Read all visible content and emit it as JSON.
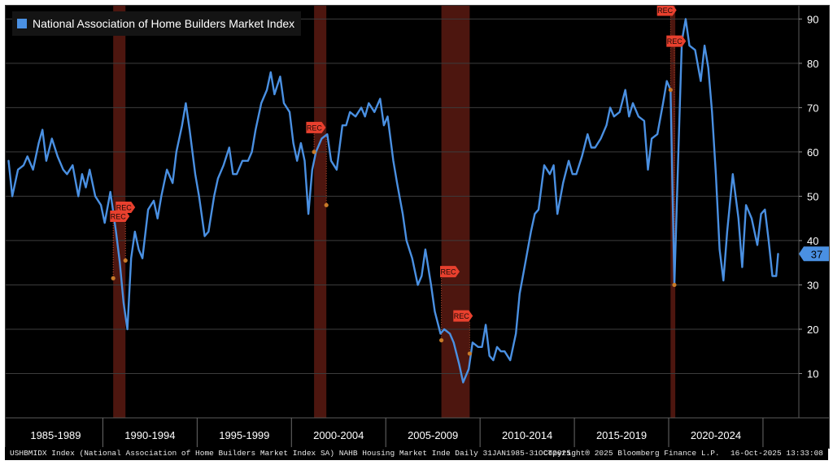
{
  "chart_data": {
    "type": "line",
    "title": "National Association of Home Builders Market Index",
    "series": [
      {
        "name": "National Association of Home Builders Market Index",
        "color": "#4a90e2",
        "points": [
          [
            1985.0,
            58
          ],
          [
            1985.2,
            50
          ],
          [
            1985.5,
            56
          ],
          [
            1985.8,
            57
          ],
          [
            1986.0,
            59
          ],
          [
            1986.3,
            56
          ],
          [
            1986.6,
            62
          ],
          [
            1986.8,
            65
          ],
          [
            1987.0,
            58
          ],
          [
            1987.3,
            63
          ],
          [
            1987.6,
            59
          ],
          [
            1987.9,
            56
          ],
          [
            1988.1,
            55
          ],
          [
            1988.4,
            57
          ],
          [
            1988.7,
            50
          ],
          [
            1988.9,
            55
          ],
          [
            1989.1,
            52
          ],
          [
            1989.3,
            56
          ],
          [
            1989.6,
            50
          ],
          [
            1989.9,
            48
          ],
          [
            1990.1,
            44
          ],
          [
            1990.4,
            51
          ],
          [
            1990.7,
            42
          ],
          [
            1990.9,
            35
          ],
          [
            1991.1,
            26
          ],
          [
            1991.3,
            20
          ],
          [
            1991.5,
            36
          ],
          [
            1991.7,
            42
          ],
          [
            1991.9,
            38
          ],
          [
            1992.1,
            36
          ],
          [
            1992.4,
            47
          ],
          [
            1992.7,
            49
          ],
          [
            1992.9,
            45
          ],
          [
            1993.1,
            50
          ],
          [
            1993.4,
            56
          ],
          [
            1993.7,
            53
          ],
          [
            1993.9,
            60
          ],
          [
            1994.2,
            66
          ],
          [
            1994.4,
            71
          ],
          [
            1994.6,
            65
          ],
          [
            1994.9,
            55
          ],
          [
            1995.1,
            50
          ],
          [
            1995.4,
            41
          ],
          [
            1995.6,
            42
          ],
          [
            1995.9,
            50
          ],
          [
            1996.1,
            54
          ],
          [
            1996.4,
            57
          ],
          [
            1996.7,
            61
          ],
          [
            1996.9,
            55
          ],
          [
            1997.1,
            55
          ],
          [
            1997.4,
            58
          ],
          [
            1997.7,
            58
          ],
          [
            1997.9,
            60
          ],
          [
            1998.1,
            65
          ],
          [
            1998.4,
            71
          ],
          [
            1998.7,
            74
          ],
          [
            1998.9,
            78
          ],
          [
            1999.1,
            73
          ],
          [
            1999.4,
            77
          ],
          [
            1999.6,
            71
          ],
          [
            1999.9,
            69
          ],
          [
            2000.1,
            62
          ],
          [
            2000.3,
            58
          ],
          [
            2000.5,
            62
          ],
          [
            2000.7,
            58
          ],
          [
            2000.9,
            46
          ],
          [
            2001.1,
            56
          ],
          [
            2001.3,
            60
          ],
          [
            2001.6,
            63
          ],
          [
            2001.9,
            64
          ],
          [
            2002.1,
            58
          ],
          [
            2002.4,
            56
          ],
          [
            2002.7,
            66
          ],
          [
            2002.9,
            66
          ],
          [
            2003.1,
            69
          ],
          [
            2003.4,
            68
          ],
          [
            2003.7,
            70
          ],
          [
            2003.9,
            68
          ],
          [
            2004.1,
            71
          ],
          [
            2004.4,
            69
          ],
          [
            2004.7,
            72
          ],
          [
            2004.9,
            66
          ],
          [
            2005.1,
            68
          ],
          [
            2005.4,
            58
          ],
          [
            2005.6,
            53
          ],
          [
            2005.9,
            46
          ],
          [
            2006.1,
            40
          ],
          [
            2006.4,
            36
          ],
          [
            2006.7,
            30
          ],
          [
            2006.9,
            32
          ],
          [
            2007.1,
            38
          ],
          [
            2007.4,
            30
          ],
          [
            2007.6,
            24
          ],
          [
            2007.9,
            19
          ],
          [
            2008.1,
            20
          ],
          [
            2008.4,
            19
          ],
          [
            2008.6,
            17
          ],
          [
            2008.9,
            12
          ],
          [
            2009.1,
            8
          ],
          [
            2009.4,
            11
          ],
          [
            2009.6,
            17
          ],
          [
            2009.9,
            16
          ],
          [
            2010.1,
            16
          ],
          [
            2010.3,
            21
          ],
          [
            2010.5,
            14
          ],
          [
            2010.7,
            13
          ],
          [
            2010.9,
            16
          ],
          [
            2011.1,
            15
          ],
          [
            2011.3,
            15
          ],
          [
            2011.6,
            13
          ],
          [
            2011.9,
            19
          ],
          [
            2012.1,
            28
          ],
          [
            2012.4,
            35
          ],
          [
            2012.7,
            42
          ],
          [
            2012.9,
            46
          ],
          [
            2013.1,
            47
          ],
          [
            2013.4,
            57
          ],
          [
            2013.7,
            55
          ],
          [
            2013.9,
            57
          ],
          [
            2014.1,
            46
          ],
          [
            2014.4,
            53
          ],
          [
            2014.7,
            58
          ],
          [
            2014.9,
            55
          ],
          [
            2015.1,
            55
          ],
          [
            2015.4,
            59
          ],
          [
            2015.7,
            64
          ],
          [
            2015.9,
            61
          ],
          [
            2016.1,
            61
          ],
          [
            2016.4,
            63
          ],
          [
            2016.7,
            66
          ],
          [
            2016.9,
            70
          ],
          [
            2017.1,
            68
          ],
          [
            2017.4,
            69
          ],
          [
            2017.7,
            74
          ],
          [
            2017.9,
            68
          ],
          [
            2018.1,
            71
          ],
          [
            2018.4,
            68
          ],
          [
            2018.7,
            67
          ],
          [
            2018.9,
            56
          ],
          [
            2019.1,
            63
          ],
          [
            2019.4,
            64
          ],
          [
            2019.7,
            71
          ],
          [
            2019.9,
            76
          ],
          [
            2020.1,
            74
          ],
          [
            2020.3,
            30
          ],
          [
            2020.5,
            58
          ],
          [
            2020.7,
            85
          ],
          [
            2020.9,
            90
          ],
          [
            2021.1,
            84
          ],
          [
            2021.4,
            83
          ],
          [
            2021.7,
            76
          ],
          [
            2021.9,
            84
          ],
          [
            2022.1,
            79
          ],
          [
            2022.3,
            69
          ],
          [
            2022.5,
            55
          ],
          [
            2022.7,
            38
          ],
          [
            2022.9,
            31
          ],
          [
            2023.1,
            42
          ],
          [
            2023.4,
            55
          ],
          [
            2023.7,
            45
          ],
          [
            2023.9,
            34
          ],
          [
            2024.1,
            48
          ],
          [
            2024.4,
            45
          ],
          [
            2024.7,
            39
          ],
          [
            2024.9,
            46
          ],
          [
            2025.1,
            47
          ],
          [
            2025.3,
            40
          ],
          [
            2025.5,
            32
          ],
          [
            2025.7,
            32
          ],
          [
            2025.8,
            37
          ]
        ]
      }
    ],
    "yaxis": {
      "range": [
        0,
        93
      ],
      "ticks": [
        10,
        20,
        30,
        40,
        50,
        60,
        70,
        80,
        90
      ],
      "position": "right"
    },
    "xaxis": {
      "range": [
        1984.85,
        2026.9
      ],
      "period_labels": [
        "1985-1989",
        "1990-1994",
        "1995-1999",
        "2000-2004",
        "2005-2009",
        "2010-2014",
        "2015-2019",
        "2020-2024"
      ]
    },
    "recessions": [
      {
        "start": 1990.55,
        "end": 1991.2
      },
      {
        "start": 2001.2,
        "end": 2001.85
      },
      {
        "start": 2007.95,
        "end": 2009.45
      },
      {
        "start": 2020.1,
        "end": 2020.35
      }
    ],
    "recession_label": "REC",
    "rec_markers": [
      {
        "label": "REC",
        "x": 1991.2,
        "y": 47.5
      },
      {
        "label": "REC",
        "x": 1990.9,
        "y": 45.5
      },
      {
        "label": "REC",
        "x": 2001.3,
        "y": 65.5
      },
      {
        "label": "REC",
        "x": 2008.4,
        "y": 33
      },
      {
        "label": "REC",
        "x": 2009.1,
        "y": 23
      },
      {
        "label": "REC",
        "x": 2019.9,
        "y": 92
      },
      {
        "label": "REC",
        "x": 2020.4,
        "y": 85
      }
    ],
    "event_points": [
      {
        "x": 1990.55,
        "y": 31.5
      },
      {
        "x": 1991.2,
        "y": 35.5
      },
      {
        "x": 2001.2,
        "y": 60
      },
      {
        "x": 2001.85,
        "y": 48
      },
      {
        "x": 2007.95,
        "y": 17.5
      },
      {
        "x": 2009.45,
        "y": 14.5
      },
      {
        "x": 2020.1,
        "y": 74
      },
      {
        "x": 2020.3,
        "y": 30
      }
    ],
    "last_value_label": "37",
    "last_value": 37,
    "grid": true
  },
  "footer": {
    "source": "USHBMIDX Index (National Association of Home Builders Market Index SA) NAHB Housing Market Inde Daily 31JAN1985-31OCT2025",
    "copyright": "Copyright® 2025 Bloomberg Finance L.P.",
    "timestamp": "16-Oct-2025 13:33:08"
  },
  "colors": {
    "background": "#000000",
    "line": "#4a90e2",
    "grid": "#3c3c3c",
    "recession": "#5a1a12",
    "rec_marker": "#e8402e",
    "event_dot": "#c87a28",
    "axis_text": "#ffffff"
  }
}
